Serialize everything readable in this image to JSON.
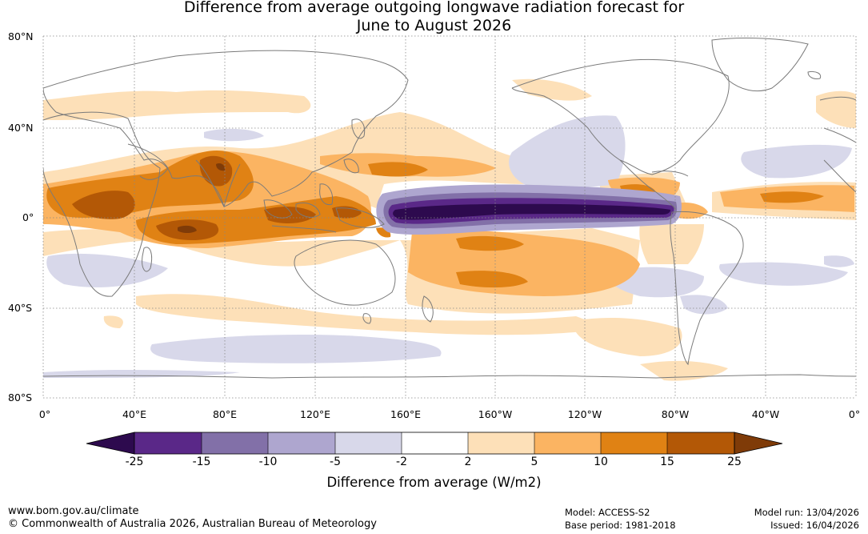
{
  "title": {
    "line1": "Difference from average outgoing longwave radiation forecast for",
    "line2": "June to August 2026"
  },
  "map": {
    "lat_labels": [
      "80°N",
      "40°N",
      "0°",
      "40°S",
      "80°S"
    ],
    "lon_labels": [
      "0°",
      "40°E",
      "80°E",
      "120°E",
      "160°E",
      "160°W",
      "120°W",
      "80°W",
      "40°W",
      "0°"
    ],
    "colors": {
      "strong_neg": "#2d0a4e",
      "neg_15": "#5a2888",
      "neg_10": "#8270a8",
      "neg_5": "#aea6cf",
      "neg_2": "#d8d8ea",
      "pos_2": "#fde0b8",
      "pos_5": "#fbb462",
      "pos_10": "#e08214",
      "pos_15": "#b35806",
      "pos_25": "#7f3b08",
      "coast": "#7a7a7a"
    }
  },
  "colorbar": {
    "ticks": [
      "-25",
      "-15",
      "-10",
      "-5",
      "-2",
      "2",
      "5",
      "10",
      "15",
      "25"
    ],
    "label": "Difference from average (W/m2)"
  },
  "footer": {
    "website": "www.bom.gov.au/climate",
    "copyright": "© Commonwealth of Australia 2026, Australian Bureau of Meteorology",
    "model": "Model: ACCESS-S2",
    "base_period": "Base period: 1981-2018",
    "model_run": "Model run: 13/04/2026",
    "issued": "Issued: 16/04/2026"
  }
}
